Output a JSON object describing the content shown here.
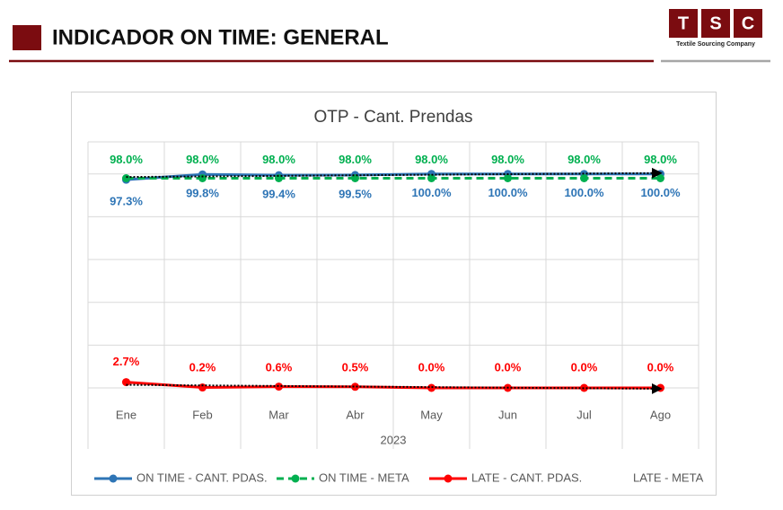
{
  "header": {
    "title": "INDICADOR ON TIME: GENERAL",
    "logo": {
      "letters": [
        "T",
        "S",
        "C"
      ],
      "tagline": "Textile Sourcing Company"
    }
  },
  "chart_data": {
    "type": "line",
    "title": "OTP - Cant. Prendas",
    "x_label": "2023",
    "categories": [
      "Ene",
      "Feb",
      "Mar",
      "Abr",
      "May",
      "Jun",
      "Jul",
      "Ago"
    ],
    "ylim": [
      0,
      115
    ],
    "yticks": [
      0,
      20,
      40,
      60,
      80,
      100
    ],
    "grid": true,
    "legend": "bottom",
    "series": [
      {
        "name": "ON TIME - CANT. PDAS.",
        "color": "#2e75b6",
        "values": [
          97.3,
          99.8,
          99.4,
          99.5,
          100,
          100,
          100,
          100
        ],
        "value_labels": [
          "97.3%",
          "99.8%",
          "99.4%",
          "99.5%",
          "100.0%",
          "100.0%",
          "100.0%",
          "100.0%"
        ]
      },
      {
        "name": "ON TIME - META",
        "color": "#00b050",
        "dashed": true,
        "values": [
          98,
          98,
          98,
          98,
          98,
          98,
          98,
          98
        ],
        "value_labels": [
          "98.0%",
          "98.0%",
          "98.0%",
          "98.0%",
          "98.0%",
          "98.0%",
          "98.0%",
          "98.0%"
        ]
      },
      {
        "name": "LATE - CANT. PDAS.",
        "color": "#ff0000",
        "values": [
          2.7,
          0.2,
          0.6,
          0.5,
          0,
          0,
          0,
          0
        ],
        "value_labels": [
          "2.7%",
          "0.2%",
          "0.6%",
          "0.5%",
          "0.0%",
          "0.0%",
          "0.0%",
          "0.0%"
        ]
      },
      {
        "name": "LATE - META"
      }
    ]
  }
}
